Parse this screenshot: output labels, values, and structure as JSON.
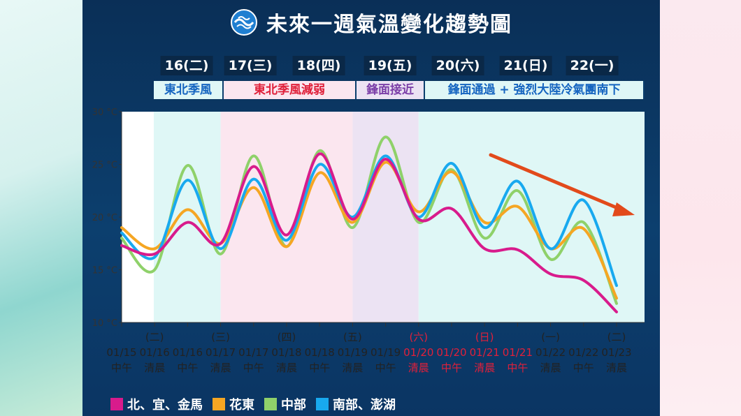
{
  "header": {
    "title": "未來一週氣溫變化趨勢圖"
  },
  "days": [
    "16(二)",
    "17(三)",
    "18(四)",
    "19(五)",
    "20(六)",
    "21(日)",
    "22(一)"
  ],
  "phases": [
    {
      "label": "東北季風",
      "color": "#1565c0",
      "bg": "#dff7f6"
    },
    {
      "label": "東北季風減弱",
      "color": "#e0203a",
      "bg": "#fbe6ef"
    },
    {
      "label": "鋒面接近",
      "color": "#7b3fa8",
      "bg": "#ece3f3"
    },
    {
      "label": "鋒面通過 + 強烈大陸冷氣團南下",
      "color": "#1565c0",
      "bg": "#dff7f6"
    }
  ],
  "colors": {
    "north": "#d81b8c",
    "east": "#f5a623",
    "central": "#8fd16a",
    "south": "#18a9ef",
    "arrow": "#e24a1b",
    "red_label": "#e0203a"
  },
  "chart_data": {
    "type": "line",
    "y_ticks": [
      "10 °C",
      "15 °C",
      "20 °C",
      "25 °C",
      "30 °C"
    ],
    "ylim": [
      10,
      30
    ],
    "x_ticks": [
      {
        "weekday": "",
        "date": "01/15",
        "time": "中午",
        "red": false
      },
      {
        "weekday": "(二)",
        "date": "01/16",
        "time": "清晨",
        "red": false
      },
      {
        "weekday": "",
        "date": "01/16",
        "time": "中午",
        "red": false
      },
      {
        "weekday": "(三)",
        "date": "01/17",
        "time": "清晨",
        "red": false
      },
      {
        "weekday": "",
        "date": "01/17",
        "time": "中午",
        "red": false
      },
      {
        "weekday": "(四)",
        "date": "01/18",
        "time": "清晨",
        "red": false
      },
      {
        "weekday": "",
        "date": "01/18",
        "time": "中午",
        "red": false
      },
      {
        "weekday": "(五)",
        "date": "01/19",
        "time": "清晨",
        "red": false
      },
      {
        "weekday": "",
        "date": "01/19",
        "time": "中午",
        "red": false
      },
      {
        "weekday": "(六)",
        "date": "01/20",
        "time": "清晨",
        "red": true
      },
      {
        "weekday": "",
        "date": "01/20",
        "time": "中午",
        "red": true
      },
      {
        "weekday": "(日)",
        "date": "01/21",
        "time": "清晨",
        "red": true
      },
      {
        "weekday": "",
        "date": "01/21",
        "time": "中午",
        "red": true
      },
      {
        "weekday": "(一)",
        "date": "01/22",
        "time": "清晨",
        "red": false
      },
      {
        "weekday": "",
        "date": "01/22",
        "time": "中午",
        "red": false
      },
      {
        "weekday": "(二)",
        "date": "01/23",
        "time": "清晨",
        "red": false
      }
    ],
    "series": [
      {
        "name": "北、宜、金馬",
        "key": "north",
        "values": [
          17.3,
          16.5,
          19.5,
          17.5,
          24.8,
          18.3,
          26.0,
          19.8,
          25.5,
          19.8,
          20.8,
          17.0,
          16.9,
          14.6,
          14.0,
          11.0
        ]
      },
      {
        "name": "花東",
        "key": "east",
        "values": [
          19.0,
          17.0,
          20.7,
          17.5,
          22.8,
          17.2,
          24.2,
          19.5,
          25.2,
          20.5,
          24.3,
          19.5,
          21.0,
          17.0,
          18.9,
          12.3
        ]
      },
      {
        "name": "中部",
        "key": "central",
        "values": [
          18.0,
          15.0,
          24.9,
          16.5,
          25.8,
          17.2,
          26.3,
          19.0,
          27.6,
          19.5,
          24.5,
          18.0,
          22.5,
          16.0,
          19.5,
          11.8
        ]
      },
      {
        "name": "南部、澎湖",
        "key": "south",
        "values": [
          18.5,
          16.2,
          23.5,
          17.0,
          23.6,
          17.8,
          25.0,
          20.0,
          25.8,
          20.0,
          25.1,
          19.0,
          23.4,
          17.0,
          21.6,
          13.5
        ]
      }
    ]
  }
}
